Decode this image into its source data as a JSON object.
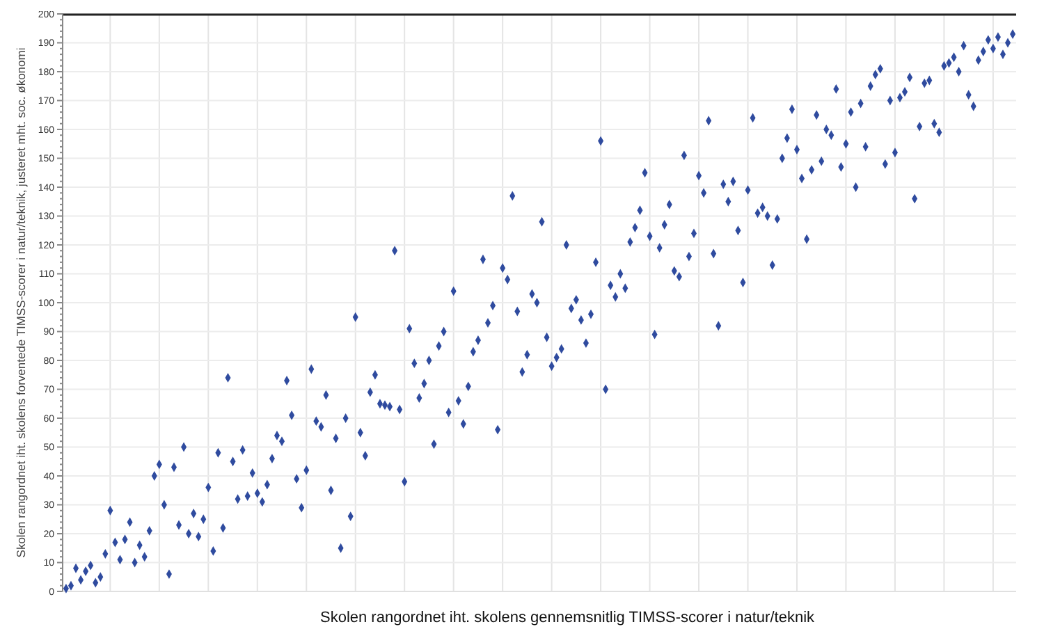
{
  "chart_data": {
    "type": "scatter",
    "xlabel": "Skolen rangordnet iht. skolens gennemsnitlig TIMSS-scorer i natur/teknik",
    "ylabel": "Skolen rangordnet iht. skolens forventede TIMSS-scorer i natur/teknik, justeret mht. soc. økonomi",
    "categories": [
      null,
      null,
      null,
      null,
      null,
      null,
      null,
      null,
      null,
      null,
      null,
      null,
      null,
      null,
      null,
      null,
      null,
      null,
      null,
      null,
      null,
      null,
      null,
      null,
      null,
      null,
      null,
      null,
      null,
      null,
      null,
      null,
      null,
      null,
      null,
      null,
      null,
      null,
      null,
      null,
      null,
      null,
      null,
      null,
      null,
      null,
      null,
      null,
      null,
      null,
      null,
      null,
      null,
      null,
      null,
      null,
      null,
      null,
      null,
      null,
      null,
      null,
      null,
      null,
      null,
      null,
      null,
      null,
      null,
      null,
      null,
      null,
      null,
      null,
      null,
      null,
      null,
      null,
      null,
      null,
      null,
      null,
      null,
      null,
      null,
      null,
      null,
      null,
      null,
      null,
      null,
      null,
      null,
      null,
      null,
      null,
      null,
      null,
      null,
      null,
      null,
      null,
      null,
      null,
      null,
      null,
      null,
      null,
      null,
      null,
      null,
      null,
      null,
      null,
      null,
      null,
      null,
      null,
      null,
      null,
      null,
      null,
      null,
      null,
      null,
      null,
      null,
      null,
      null,
      null,
      null,
      null,
      null,
      null,
      null,
      null,
      null,
      null,
      null,
      null,
      null,
      null,
      null,
      null,
      null,
      null,
      null,
      null,
      null,
      null,
      null,
      null,
      null,
      null,
      null,
      null,
      null,
      null,
      null,
      null,
      null,
      null,
      null,
      null,
      null,
      null,
      null,
      null,
      null,
      null,
      null,
      null,
      null,
      null,
      null,
      null,
      null,
      null,
      null,
      null,
      null,
      null,
      null,
      null,
      null,
      null,
      null,
      null,
      null,
      null,
      null,
      null,
      null,
      null
    ],
    "series": [
      {
        "color": "#2f4b9f",
        "values": [
          1,
          2,
          8,
          4,
          7,
          9,
          3,
          5,
          13,
          28,
          17,
          11,
          18,
          24,
          10,
          16,
          12,
          21,
          40,
          44,
          30,
          6,
          43,
          23,
          50,
          20,
          27,
          19,
          25,
          36,
          14,
          48,
          22,
          74,
          45,
          32,
          49,
          33,
          41,
          34,
          31,
          37,
          46,
          54,
          52,
          73,
          61,
          39,
          29,
          42,
          77,
          59,
          57,
          68,
          35,
          53,
          15,
          60,
          26,
          95,
          55,
          47,
          69,
          75,
          65,
          64.5,
          64,
          118,
          63,
          38,
          91,
          79,
          67,
          72,
          80,
          51,
          85,
          90,
          62,
          104,
          66,
          58,
          71,
          83,
          87,
          115,
          93,
          99,
          56,
          112,
          108,
          137,
          97,
          76,
          82,
          103,
          100,
          128,
          88,
          78,
          81,
          84,
          120,
          98,
          101,
          94,
          86,
          96,
          114,
          156,
          70,
          106,
          102,
          110,
          105,
          121,
          126,
          132,
          145,
          123,
          89,
          119,
          127,
          134,
          111,
          109,
          151,
          116,
          124,
          144,
          138,
          163,
          117,
          92,
          141,
          135,
          142,
          125,
          107,
          139,
          164,
          131,
          133,
          130,
          113,
          129,
          150,
          157,
          167,
          153,
          143,
          122,
          146,
          165,
          149,
          160,
          158,
          174,
          147,
          155,
          166,
          140,
          169,
          154,
          175,
          179,
          181,
          148,
          170,
          152,
          171,
          173,
          178,
          136,
          161,
          176,
          177,
          162,
          159,
          182,
          183,
          185,
          180,
          189,
          172,
          168,
          184,
          187,
          191,
          188,
          192,
          186,
          190,
          193
        ]
      }
    ],
    "ylim": [
      0,
      200
    ],
    "yticks": [
      0,
      10,
      20,
      30,
      40,
      50,
      60,
      70,
      80,
      90,
      100,
      110,
      120,
      130,
      140,
      150,
      160,
      170,
      180,
      190,
      200
    ],
    "tick_labels": "y",
    "grid": true,
    "marker": "diamond"
  }
}
